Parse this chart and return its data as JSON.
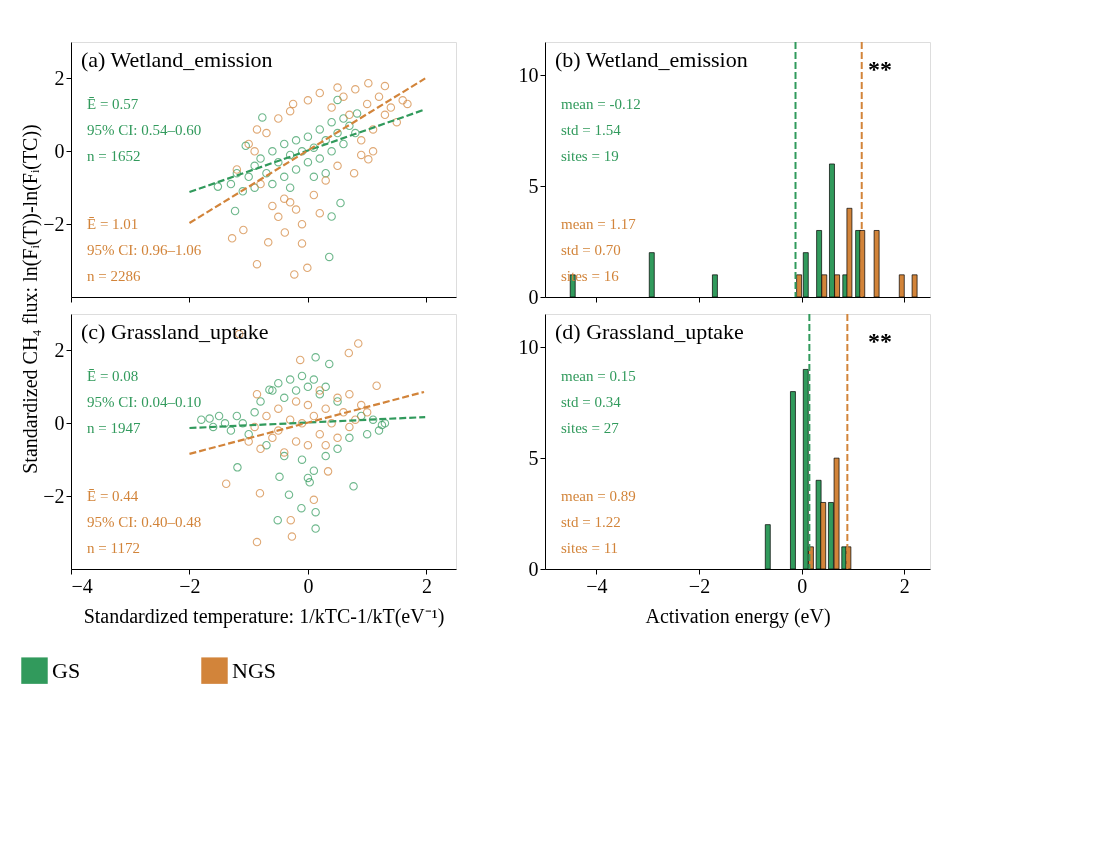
{
  "chart_data": [
    {
      "type": "scatter",
      "title": "(a) Wetland_emission",
      "ylabel": "Standardized CH₄ flux: ln(Fᵢ(T))-ln(Fᵢ(TC))",
      "xlim": [
        -4,
        2.5
      ],
      "ylim": [
        -4,
        3
      ],
      "xticks": [
        -4,
        -2,
        0,
        2
      ],
      "yticks": [
        -2,
        0,
        2
      ],
      "tick_labels": "y",
      "line_style": "dashed",
      "series": [
        {
          "marker": "circle",
          "color": "#319a5c",
          "x": [
            -1.3,
            -1.2,
            -1.1,
            -1.0,
            -0.9,
            -0.9,
            -0.8,
            -0.7,
            -0.6,
            -0.6,
            -0.5,
            -0.4,
            -0.4,
            -0.3,
            -0.2,
            -0.2,
            -0.1,
            0.0,
            0.0,
            0.1,
            0.2,
            0.2,
            0.3,
            0.4,
            0.4,
            0.5,
            0.6,
            0.7,
            0.8,
            0.6,
            -0.3,
            0.1,
            0.3,
            -0.77,
            0.5,
            0.36,
            0.4,
            0.55,
            -1.52,
            -1.23,
            -1.05,
            0.83
          ],
          "values": [
            -0.9,
            -0.6,
            -1.1,
            -0.7,
            -0.4,
            -1.0,
            -0.2,
            -0.6,
            -0.9,
            0.0,
            -0.3,
            0.2,
            -0.7,
            -0.1,
            0.3,
            -0.5,
            0.0,
            0.4,
            -0.3,
            0.1,
            0.6,
            -0.2,
            0.3,
            0.8,
            0.0,
            0.5,
            0.2,
            0.7,
            0.5,
            0.9,
            -1.0,
            -0.7,
            -0.6,
            0.93,
            1.41,
            -2.9,
            -1.79,
            -1.42,
            -0.97,
            -1.64,
            0.15,
            1.04
          ]
        },
        {
          "marker": "circle",
          "color": "#d2843a",
          "x": [
            -1.2,
            -1.0,
            -0.8,
            -0.7,
            -0.5,
            -0.4,
            -0.3,
            -0.2,
            0.0,
            0.1,
            0.2,
            0.3,
            0.4,
            0.5,
            0.6,
            0.7,
            0.8,
            0.9,
            1.0,
            1.1,
            1.2,
            1.3,
            1.4,
            1.5,
            1.6,
            -0.5,
            -0.1,
            -0.3,
            0.2,
            -0.6,
            0.9,
            1.1,
            -0.9,
            1.02,
            1.3,
            1.68,
            0.5,
            -0.25,
            -0.86,
            0.78,
            1.02,
            -1.28,
            -0.86,
            -0.23,
            -0.01,
            -0.67,
            -0.39,
            -0.1,
            -1.09
          ],
          "values": [
            -0.5,
            0.2,
            -0.9,
            0.5,
            0.9,
            -1.3,
            1.1,
            -1.6,
            1.4,
            -1.2,
            1.6,
            -0.8,
            1.2,
            -0.4,
            1.5,
            1.0,
            1.7,
            0.3,
            1.3,
            0.6,
            1.5,
            1.0,
            1.2,
            0.8,
            1.4,
            -1.8,
            -2.0,
            -1.4,
            -1.7,
            -1.5,
            -0.1,
            0.0,
            0.0,
            1.87,
            1.79,
            1.3,
            1.75,
            1.3,
            0.6,
            -0.6,
            -0.22,
            -2.39,
            -3.1,
            -3.38,
            -3.2,
            -2.5,
            -2.23,
            -2.53,
            -2.16
          ]
        },
        {
          "type": "line",
          "color": "#319a5c",
          "x": [
            -2,
            1.98
          ],
          "values": [
            -1.12,
            1.15
          ]
        },
        {
          "type": "line",
          "color": "#d2843a",
          "x": [
            -2,
            1.98
          ],
          "values": [
            -1.97,
            2.0
          ]
        }
      ],
      "annotations": [
        "Ē = 0.57",
        "95% CI: 0.54–0.60",
        "n = 1652",
        "Ē = 1.01",
        "95% CI: 0.96–1.06",
        "n = 2286"
      ]
    },
    {
      "type": "bar",
      "title": "(b) Wetland_emission",
      "xlim": [
        -5,
        2.5
      ],
      "ylim": [
        0,
        11.5
      ],
      "xticks": [
        -4,
        -2,
        0,
        2
      ],
      "yticks": [
        0,
        5,
        10
      ],
      "tick_labels": "y",
      "series": [
        {
          "color": "#319a5c",
          "x": [
            -4.46,
            -2.92,
            -1.69,
            0.08,
            0.34,
            0.59,
            0.85,
            1.1
          ],
          "values": [
            1,
            2,
            1,
            2,
            3,
            6,
            1,
            3
          ]
        },
        {
          "color": "#d2843a",
          "x": [
            -0.05,
            0.44,
            0.69,
            0.93,
            1.18,
            1.46,
            1.95,
            2.2
          ],
          "values": [
            1,
            1,
            1,
            4,
            3,
            3,
            1,
            1
          ]
        }
      ],
      "ref_lines": [
        {
          "axis": "x",
          "value": -0.12,
          "color": "#319a5c",
          "line_style": "dashed"
        },
        {
          "axis": "x",
          "value": 1.17,
          "color": "#d2843a",
          "line_style": "dashed"
        }
      ],
      "annotations": [
        "mean = -0.12",
        "std = 1.54",
        "sites = 19",
        "mean = 1.17",
        "std = 0.70",
        "sites = 16",
        "**"
      ]
    },
    {
      "type": "scatter",
      "title": "(c) Grassland_uptake",
      "xlabel": "Standardized temperature: 1/kTC-1/kT(eV⁻¹)",
      "xlim": [
        -4,
        2.5
      ],
      "ylim": [
        -4,
        3
      ],
      "xticks": [
        -4,
        -2,
        0,
        2
      ],
      "yticks": [
        -2,
        0,
        2
      ],
      "line_style": "dashed",
      "series": [
        {
          "marker": "circle",
          "color": "#319a5c",
          "x": [
            -1.8,
            -1.6,
            -1.5,
            -1.4,
            -1.3,
            -1.2,
            -1.1,
            -1.0,
            -0.9,
            -0.8,
            -0.6,
            -0.5,
            -0.4,
            -0.3,
            -0.2,
            -0.1,
            0.0,
            0.1,
            0.2,
            0.3,
            0.5,
            0.7,
            0.9,
            1.0,
            1.1,
            1.2,
            1.3,
            -0.7,
            -0.4,
            -0.1,
            0.1,
            0.3,
            0.5,
            0.0,
            0.13,
            0.36,
            -0.65,
            -1.66,
            1.25,
            -1.19,
            -0.48,
            -0.32,
            -0.51,
            -0.11,
            0.13,
            0.77,
            0.13,
            0.03
          ],
          "values": [
            0.1,
            -0.1,
            0.2,
            0.0,
            -0.2,
            0.2,
            0.0,
            -0.3,
            0.3,
            0.6,
            0.9,
            1.1,
            0.7,
            1.2,
            0.9,
            1.3,
            1.0,
            1.2,
            0.8,
            1.0,
            0.6,
            -0.4,
            0.2,
            -0.3,
            0.1,
            -0.2,
            0.0,
            -0.6,
            -0.9,
            -1.0,
            -1.3,
            -0.9,
            -0.7,
            -1.5,
            1.81,
            1.63,
            0.92,
            0.13,
            -0.05,
            -1.21,
            -1.47,
            -1.96,
            -2.66,
            -2.33,
            -2.89,
            -1.73,
            -2.44,
            -1.62
          ]
        },
        {
          "marker": "circle",
          "color": "#d2843a",
          "x": [
            -1.0,
            -0.9,
            -0.8,
            -0.7,
            -0.6,
            -0.5,
            -0.4,
            -0.3,
            -0.2,
            -0.2,
            -0.1,
            0.0,
            0.0,
            0.1,
            0.2,
            0.2,
            0.3,
            0.4,
            0.5,
            0.5,
            0.6,
            0.7,
            0.8,
            0.9,
            1.0,
            -0.5,
            0.3,
            0.7,
            -1.16,
            0.85,
            -0.13,
            1.16,
            0.69,
            -0.86,
            -1.38,
            -0.81,
            -0.86,
            -0.27,
            -0.29,
            0.1,
            0.34
          ],
          "values": [
            -0.5,
            -0.1,
            -0.7,
            0.2,
            -0.4,
            0.4,
            -0.8,
            0.1,
            0.6,
            -0.5,
            0.0,
            0.5,
            -0.6,
            0.2,
            0.9,
            -0.3,
            0.4,
            0.0,
            0.7,
            -0.4,
            0.3,
            0.8,
            0.1,
            0.5,
            0.3,
            -0.2,
            -0.6,
            -0.1,
            2.45,
            2.19,
            1.74,
            1.03,
            1.93,
            0.8,
            -1.66,
            -1.92,
            -3.26,
            -3.11,
            -2.66,
            -2.1,
            -1.32
          ]
        },
        {
          "type": "line",
          "color": "#319a5c",
          "x": [
            -2,
            1.98
          ],
          "values": [
            -0.13,
            0.17
          ]
        },
        {
          "type": "line",
          "color": "#d2843a",
          "x": [
            -2,
            1.96
          ],
          "values": [
            -0.84,
            0.86
          ]
        }
      ],
      "annotations": [
        "Ē = 0.08",
        "95% CI: 0.04–0.10",
        "n = 1947",
        "Ē = 0.44",
        "95% CI: 0.40–0.48",
        "n = 1172"
      ]
    },
    {
      "type": "bar",
      "title": "(d) Grassland_uptake",
      "xlabel": "Activation energy (eV)",
      "xlim": [
        -5,
        2.5
      ],
      "ylim": [
        0,
        11.5
      ],
      "xticks": [
        -4,
        -2,
        0,
        2
      ],
      "yticks": [
        0,
        5,
        10
      ],
      "legend": "bottom",
      "series": [
        {
          "name": "GS",
          "color": "#319a5c",
          "x": [
            -0.66,
            -0.17,
            0.08,
            0.33,
            0.57,
            0.83
          ],
          "values": [
            2,
            8,
            9,
            4,
            3,
            1
          ]
        },
        {
          "name": "NGS",
          "color": "#d2843a",
          "x": [
            0.18,
            0.42,
            0.68,
            0.91
          ],
          "values": [
            1,
            3,
            5,
            1
          ]
        }
      ],
      "ref_lines": [
        {
          "axis": "x",
          "value": 0.15,
          "color": "#319a5c",
          "line_style": "dashed"
        },
        {
          "axis": "x",
          "value": 0.89,
          "color": "#d2843a",
          "line_style": "dashed"
        }
      ],
      "annotations": [
        "mean = 0.15",
        "std = 0.34",
        "sites = 27",
        "mean = 0.89",
        "std = 1.22",
        "sites = 11",
        "**"
      ]
    }
  ]
}
